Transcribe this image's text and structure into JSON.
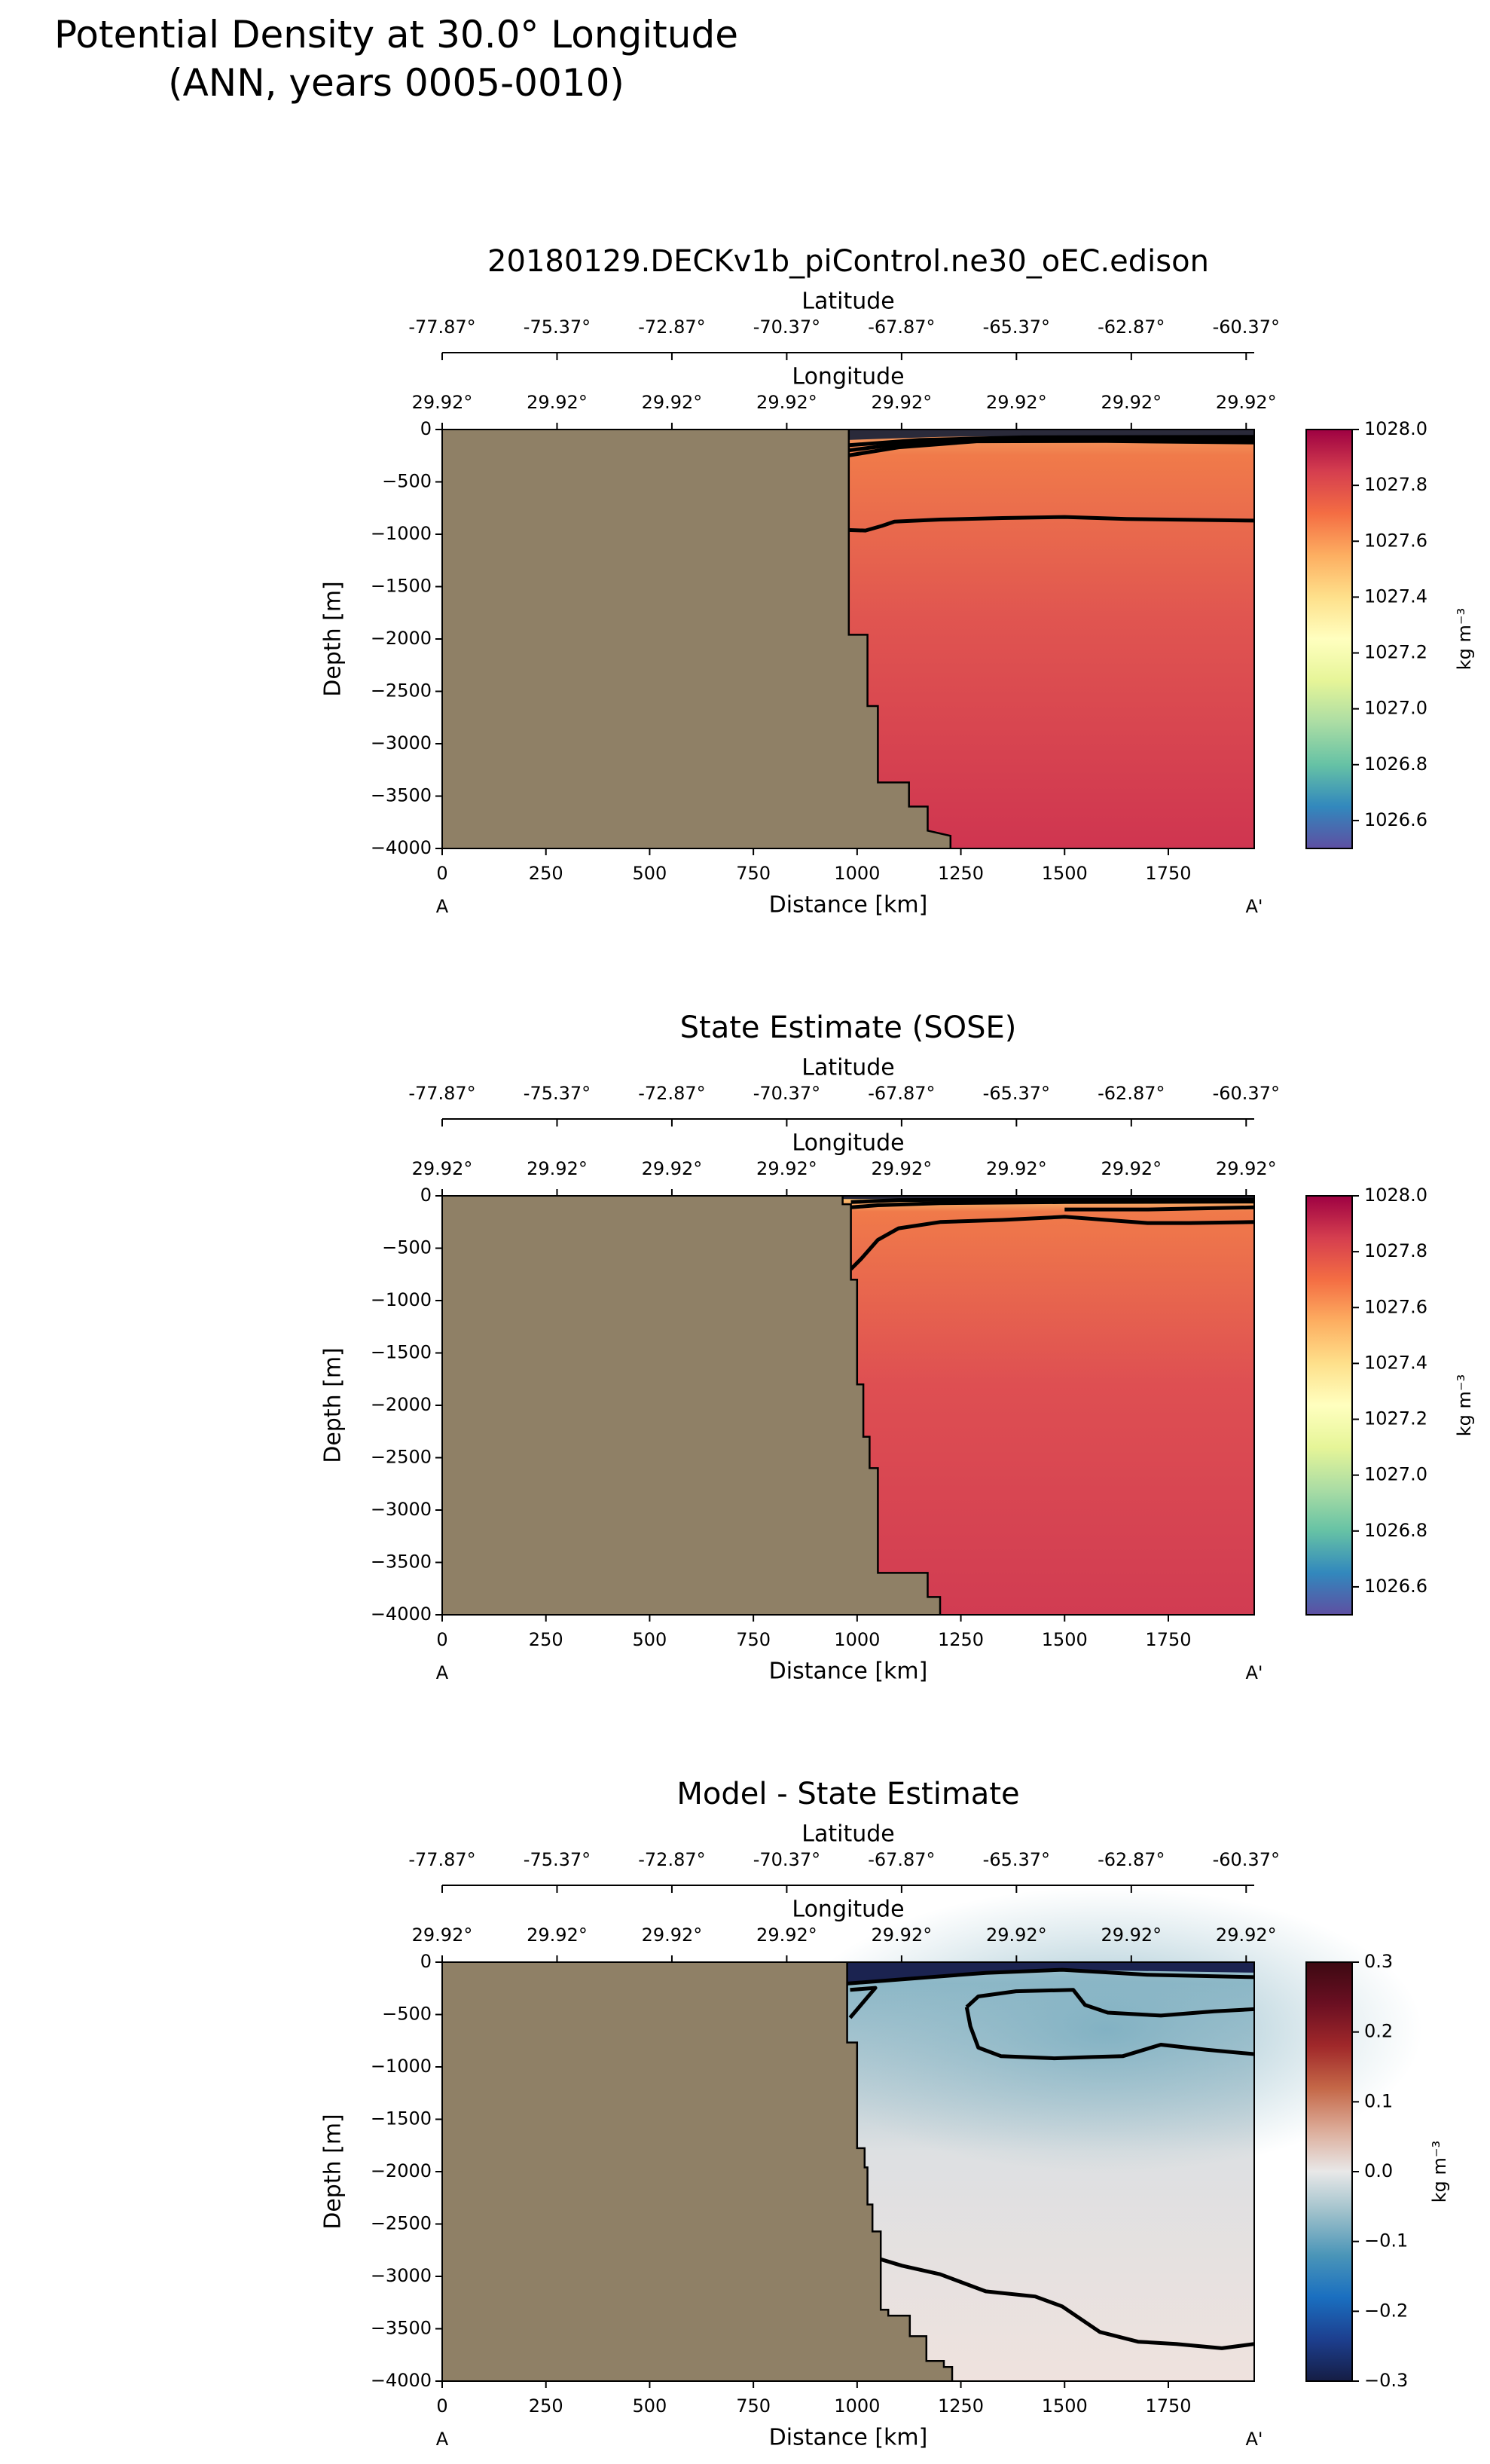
{
  "figure": {
    "title_line1": "Potential Density at 30.0° Longitude",
    "title_line2": "(ANN, years 0005-0010)"
  },
  "colors": {
    "land": "#8f8066",
    "contour": "#000000"
  },
  "chart_data": [
    {
      "type": "heatmap",
      "title": "20180129.DECKv1b_piControl.ne30_oEC.edison",
      "xlabel": "Distance [km]",
      "ylabel": "Depth [m]",
      "xlim": [
        0,
        1957
      ],
      "ylim": [
        -4000,
        0
      ],
      "xticks": [
        0,
        250,
        500,
        750,
        1000,
        1250,
        1500,
        1750
      ],
      "yticks": [
        0,
        -500,
        -1000,
        -1500,
        -2000,
        -2500,
        -3000,
        -3500,
        -4000
      ],
      "xtick_labels": [
        "0",
        "250",
        "500",
        "750",
        "1000",
        "1250",
        "1500",
        "1750"
      ],
      "ytick_labels": [
        "0",
        "−500",
        "−1000",
        "−1500",
        "−2000",
        "−2500",
        "−3000",
        "−3500",
        "−4000"
      ],
      "start_label": "A",
      "end_label": "A'",
      "lat_axis_label": "Latitude",
      "lat_tick_labels": [
        "-77.87°",
        "-75.37°",
        "-72.87°",
        "-70.37°",
        "-67.87°",
        "-65.37°",
        "-62.87°",
        "-60.37°"
      ],
      "lon_axis_label": "Longitude",
      "lon_tick_labels": [
        "29.92°",
        "29.92°",
        "29.92°",
        "29.92°",
        "29.92°",
        "29.92°",
        "29.92°",
        "29.92°"
      ],
      "colorbar": {
        "label": "kg m⁻³",
        "range": [
          1026.5,
          1028.0
        ],
        "ticks": [
          1026.6,
          1026.8,
          1027.0,
          1027.2,
          1027.4,
          1027.6,
          1027.8,
          1028.0
        ],
        "tick_labels": [
          "1026.6",
          "1026.8",
          "1027.0",
          "1027.2",
          "1027.4",
          "1027.6",
          "1027.8",
          "1028.0"
        ],
        "colormap": [
          "#5e4fa2",
          "#3288bd",
          "#66c2a5",
          "#abdda4",
          "#e6f598",
          "#ffffbf",
          "#fee08b",
          "#fdae61",
          "#f46d43",
          "#d53e4f",
          "#9e0142"
        ]
      },
      "field": {
        "surface_color": "#f4a062",
        "upper_color": "#f07a4a",
        "mid_color": "#e05550",
        "deep_color": "#cf3550",
        "surface_depth": -250
      },
      "bathymetry": [
        [
          980,
          0
        ],
        [
          980,
          -1960
        ],
        [
          1025,
          -1960
        ],
        [
          1025,
          -2640
        ],
        [
          1050,
          -2640
        ],
        [
          1050,
          -3370
        ],
        [
          1125,
          -3370
        ],
        [
          1125,
          -3600
        ],
        [
          1170,
          -3600
        ],
        [
          1170,
          -3830
        ],
        [
          1225,
          -3880
        ],
        [
          1225,
          -4000
        ]
      ],
      "top_band": [
        [
          978,
          0
        ],
        [
          1957,
          0
        ],
        [
          1957,
          -80
        ],
        [
          1500,
          -60
        ],
        [
          1200,
          -70
        ],
        [
          978,
          -100
        ]
      ],
      "top_band_color": "#2a2a3a",
      "contours": [
        [
          [
            978,
            -248
          ],
          [
            1100,
            -170
          ],
          [
            1288,
            -112
          ],
          [
            1600,
            -110
          ],
          [
            1957,
            -124
          ]
        ],
        [
          [
            978,
            -200
          ],
          [
            1100,
            -140
          ],
          [
            1300,
            -95
          ],
          [
            1957,
            -100
          ]
        ],
        [
          [
            978,
            -150
          ],
          [
            1150,
            -100
          ],
          [
            1400,
            -75
          ],
          [
            1957,
            -70
          ]
        ],
        [
          [
            978,
            -960
          ],
          [
            1020,
            -965
          ],
          [
            1060,
            -920
          ],
          [
            1090,
            -880
          ],
          [
            1200,
            -860
          ],
          [
            1350,
            -845
          ],
          [
            1500,
            -835
          ],
          [
            1650,
            -855
          ],
          [
            1957,
            -870
          ]
        ]
      ]
    },
    {
      "type": "heatmap",
      "title": "State Estimate (SOSE)",
      "xlabel": "Distance [km]",
      "ylabel": "Depth [m]",
      "xlim": [
        0,
        1957
      ],
      "ylim": [
        -4000,
        0
      ],
      "xticks": [
        0,
        250,
        500,
        750,
        1000,
        1250,
        1500,
        1750
      ],
      "yticks": [
        0,
        -500,
        -1000,
        -1500,
        -2000,
        -2500,
        -3000,
        -3500,
        -4000
      ],
      "xtick_labels": [
        "0",
        "250",
        "500",
        "750",
        "1000",
        "1250",
        "1500",
        "1750"
      ],
      "ytick_labels": [
        "0",
        "−500",
        "−1000",
        "−1500",
        "−2000",
        "−2500",
        "−3000",
        "−3500",
        "−4000"
      ],
      "start_label": "A",
      "end_label": "A'",
      "lat_axis_label": "Latitude",
      "lat_tick_labels": [
        "-77.87°",
        "-75.37°",
        "-72.87°",
        "-70.37°",
        "-67.87°",
        "-65.37°",
        "-62.87°",
        "-60.37°"
      ],
      "lon_axis_label": "Longitude",
      "lon_tick_labels": [
        "29.92°",
        "29.92°",
        "29.92°",
        "29.92°",
        "29.92°",
        "29.92°",
        "29.92°",
        "29.92°"
      ],
      "colorbar": {
        "label": "kg m⁻³",
        "range": [
          1026.5,
          1028.0
        ],
        "ticks": [
          1026.6,
          1026.8,
          1027.0,
          1027.2,
          1027.4,
          1027.6,
          1027.8,
          1028.0
        ],
        "tick_labels": [
          "1026.6",
          "1026.8",
          "1027.0",
          "1027.2",
          "1027.4",
          "1027.6",
          "1027.8",
          "1028.0"
        ],
        "colormap": [
          "#5e4fa2",
          "#3288bd",
          "#66c2a5",
          "#abdda4",
          "#e6f598",
          "#ffffbf",
          "#fee08b",
          "#fdae61",
          "#f46d43",
          "#d53e4f",
          "#9e0142"
        ]
      },
      "field": {
        "surface_color": "#fdd17a",
        "upper_color": "#f07a4a",
        "mid_color": "#de4f52",
        "deep_color": "#d13c52",
        "surface_depth": -150
      },
      "bathymetry": [
        [
          965,
          0
        ],
        [
          965,
          -80
        ],
        [
          985,
          -80
        ],
        [
          985,
          -800
        ],
        [
          1000,
          -800
        ],
        [
          1000,
          -1800
        ],
        [
          1015,
          -1800
        ],
        [
          1015,
          -2300
        ],
        [
          1030,
          -2300
        ],
        [
          1030,
          -2600
        ],
        [
          1050,
          -2600
        ],
        [
          1050,
          -3600
        ],
        [
          1130,
          -3600
        ],
        [
          1170,
          -3600
        ],
        [
          1170,
          -3830
        ],
        [
          1200,
          -3830
        ],
        [
          1200,
          -4000
        ]
      ],
      "top_band": [
        [
          965,
          0
        ],
        [
          1957,
          0
        ],
        [
          1957,
          -30
        ],
        [
          1500,
          -20
        ],
        [
          1100,
          -30
        ],
        [
          965,
          -30
        ]
      ],
      "top_band_color": "#2a2a3a",
      "contours": [
        [
          [
            985,
            -700
          ],
          [
            1010,
            -600
          ],
          [
            1050,
            -420
          ],
          [
            1100,
            -310
          ],
          [
            1200,
            -250
          ],
          [
            1350,
            -230
          ],
          [
            1500,
            -200
          ],
          [
            1600,
            -230
          ],
          [
            1700,
            -260
          ],
          [
            1800,
            -260
          ],
          [
            1957,
            -250
          ]
        ],
        [
          [
            985,
            -110
          ],
          [
            1050,
            -90
          ],
          [
            1200,
            -70
          ],
          [
            1500,
            -60
          ],
          [
            1957,
            -55
          ]
        ],
        [
          [
            985,
            -60
          ],
          [
            1100,
            -40
          ],
          [
            1400,
            -35
          ],
          [
            1957,
            -35
          ]
        ],
        [
          [
            1500,
            -130
          ],
          [
            1700,
            -130
          ],
          [
            1957,
            -110
          ]
        ]
      ]
    },
    {
      "type": "heatmap",
      "title": "Model - State Estimate",
      "xlabel": "Distance [km]",
      "ylabel": "Depth [m]",
      "xlim": [
        0,
        1957
      ],
      "ylim": [
        -4000,
        0
      ],
      "xticks": [
        0,
        250,
        500,
        750,
        1000,
        1250,
        1500,
        1750
      ],
      "yticks": [
        0,
        -500,
        -1000,
        -1500,
        -2000,
        -2500,
        -3000,
        -3500,
        -4000
      ],
      "xtick_labels": [
        "0",
        "250",
        "500",
        "750",
        "1000",
        "1250",
        "1500",
        "1750"
      ],
      "ytick_labels": [
        "0",
        "−500",
        "−1000",
        "−1500",
        "−2000",
        "−2500",
        "−3000",
        "−3500",
        "−4000"
      ],
      "start_label": "A",
      "end_label": "A'",
      "lat_axis_label": "Latitude",
      "lat_tick_labels": [
        "-77.87°",
        "-75.37°",
        "-72.87°",
        "-70.37°",
        "-67.87°",
        "-65.37°",
        "-62.87°",
        "-60.37°"
      ],
      "lon_axis_label": "Longitude",
      "lon_tick_labels": [
        "29.92°",
        "29.92°",
        "29.92°",
        "29.92°",
        "29.92°",
        "29.92°",
        "29.92°",
        "29.92°"
      ],
      "colorbar": {
        "label": "kg m⁻³",
        "range": [
          -0.3,
          0.3
        ],
        "ticks": [
          -0.3,
          -0.2,
          -0.1,
          0.0,
          0.1,
          0.2,
          0.3
        ],
        "tick_labels": [
          "−0.3",
          "−0.2",
          "−0.1",
          "0.0",
          "0.1",
          "0.2",
          "0.3"
        ],
        "colormap": [
          "#151d44",
          "#1d3f8f",
          "#1a6fc0",
          "#4a95b8",
          "#9cbfca",
          "#e8e8e8",
          "#dcab98",
          "#c46747",
          "#a0282a",
          "#6b0f22",
          "#3c0912"
        ]
      },
      "field": {
        "surface_color": "#a8c8d2",
        "upper_color": "#8ab6c6",
        "mid_color": "#dde0e2",
        "deep_color": "#efe2de",
        "surface_depth": -200
      },
      "bathymetry": [
        [
          976,
          0
        ],
        [
          976,
          -767
        ],
        [
          1000,
          -767
        ],
        [
          1000,
          -1776
        ],
        [
          1018,
          -1776
        ],
        [
          1018,
          -1960
        ],
        [
          1025,
          -1960
        ],
        [
          1025,
          -2314
        ],
        [
          1037,
          -2314
        ],
        [
          1037,
          -2571
        ],
        [
          1057,
          -2571
        ],
        [
          1057,
          -3318
        ],
        [
          1075,
          -3318
        ],
        [
          1075,
          -3375
        ],
        [
          1127,
          -3375
        ],
        [
          1127,
          -3571
        ],
        [
          1167,
          -3571
        ],
        [
          1167,
          -3808
        ],
        [
          1209,
          -3808
        ],
        [
          1209,
          -3865
        ],
        [
          1229,
          -3865
        ],
        [
          1229,
          -4000
        ]
      ],
      "top_band": [
        [
          976,
          0
        ],
        [
          1957,
          0
        ],
        [
          1957,
          -100
        ],
        [
          1494,
          -73
        ],
        [
          1310,
          -102
        ],
        [
          976,
          -204
        ]
      ],
      "top_band_color": "#1b2350",
      "contours": [
        [
          [
            976,
            -204
          ],
          [
            1310,
            -102
          ],
          [
            1494,
            -73
          ],
          [
            1700,
            -120
          ],
          [
            1965,
            -143
          ]
        ],
        [
          [
            983,
            -265
          ],
          [
            1044,
            -245
          ],
          [
            983,
            -531
          ]
        ],
        [
          [
            1264,
            -429
          ],
          [
            1292,
            -327
          ],
          [
            1383,
            -278
          ],
          [
            1521,
            -265
          ],
          [
            1549,
            -408
          ],
          [
            1604,
            -482
          ],
          [
            1732,
            -510
          ],
          [
            1861,
            -469
          ],
          [
            1965,
            -449
          ]
        ],
        [
          [
            1965,
            -878
          ],
          [
            1842,
            -837
          ],
          [
            1732,
            -788
          ],
          [
            1640,
            -898
          ],
          [
            1567,
            -906
          ],
          [
            1475,
            -918
          ],
          [
            1347,
            -898
          ],
          [
            1292,
            -816
          ],
          [
            1273,
            -612
          ],
          [
            1264,
            -429
          ]
        ],
        [
          [
            1057,
            -2837
          ],
          [
            1108,
            -2898
          ],
          [
            1200,
            -2980
          ],
          [
            1310,
            -3143
          ],
          [
            1429,
            -3192
          ],
          [
            1494,
            -3286
          ],
          [
            1585,
            -3531
          ],
          [
            1677,
            -3624
          ],
          [
            1769,
            -3645
          ],
          [
            1879,
            -3686
          ],
          [
            1965,
            -3645
          ]
        ]
      ]
    }
  ]
}
